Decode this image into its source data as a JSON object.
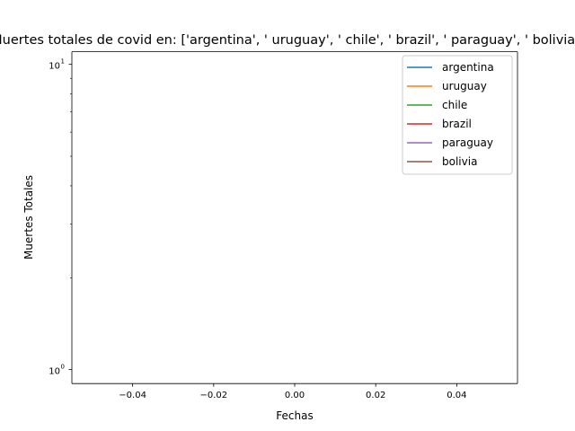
{
  "chart_data": {
    "type": "line",
    "title": "Muertes totales de covid en: ['argentina', ' uruguay', ' chile', ' brazil', ' paraguay', ' bolivia']",
    "xlabel": "Fechas",
    "ylabel": "Muertes Totales",
    "yscale": "log",
    "xlim": [
      -0.055,
      0.055
    ],
    "ylim": [
      0.9,
      11
    ],
    "x_ticks": [
      -0.04,
      -0.02,
      0.0,
      0.02,
      0.04
    ],
    "x_tick_labels": [
      "−0.04",
      "−0.02",
      "0.00",
      "0.02",
      "0.04"
    ],
    "y_major_ticks": [
      1,
      10
    ],
    "y_major_tick_labels": [
      "10",
      "10"
    ],
    "y_major_tick_exponents": [
      "0",
      "1"
    ],
    "y_minor_ticks": [
      2,
      3,
      4,
      5,
      6,
      7,
      8,
      9
    ],
    "grid": false,
    "legend_position": "top-right",
    "series": [
      {
        "name": "argentina",
        "color": "#1f77b4",
        "values": []
      },
      {
        "name": " uruguay",
        "color": "#ff7f0e",
        "values": []
      },
      {
        "name": " chile",
        "color": "#2ca02c",
        "values": []
      },
      {
        "name": " brazil",
        "color": "#d62728",
        "values": []
      },
      {
        "name": " paraguay",
        "color": "#9467bd",
        "values": []
      },
      {
        "name": " bolivia",
        "color": "#8c564b",
        "values": []
      }
    ]
  }
}
